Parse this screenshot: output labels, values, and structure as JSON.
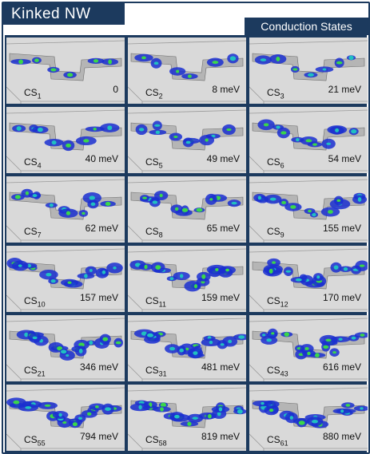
{
  "title": "Kinked NW",
  "section": "Conduction States",
  "colors": {
    "frame": "#1c3a5e",
    "panel_bg": "#d9d9d9",
    "density_low": "#1a2fd0",
    "density_mid": "#20c0c0",
    "density_high": "#3ad64a"
  },
  "panels": [
    {
      "prefix": "CS",
      "index": "1",
      "energy": "0"
    },
    {
      "prefix": "CS",
      "index": "2",
      "energy": "8 meV"
    },
    {
      "prefix": "CS",
      "index": "3",
      "energy": "21 meV"
    },
    {
      "prefix": "CS",
      "index": "4",
      "energy": "40 meV"
    },
    {
      "prefix": "CS",
      "index": "5",
      "energy": "49 meV"
    },
    {
      "prefix": "CS",
      "index": "6",
      "energy": "54 meV"
    },
    {
      "prefix": "CS",
      "index": "7",
      "energy": "62 meV"
    },
    {
      "prefix": "CS",
      "index": "8",
      "energy": "65 meV"
    },
    {
      "prefix": "CS",
      "index": "9",
      "energy": "155 meV"
    },
    {
      "prefix": "CS",
      "index": "10",
      "energy": "157 meV"
    },
    {
      "prefix": "CS",
      "index": "11",
      "energy": "159 meV"
    },
    {
      "prefix": "CS",
      "index": "12",
      "energy": "170 meV"
    },
    {
      "prefix": "CS",
      "index": "21",
      "energy": "346 meV"
    },
    {
      "prefix": "CS",
      "index": "31",
      "energy": "481 meV"
    },
    {
      "prefix": "CS",
      "index": "43",
      "energy": "616 meV"
    },
    {
      "prefix": "CS",
      "index": "55",
      "energy": "794 meV"
    },
    {
      "prefix": "CS",
      "index": "58",
      "energy": "819 meV"
    },
    {
      "prefix": "CS",
      "index": "61",
      "energy": "880 meV"
    }
  ]
}
